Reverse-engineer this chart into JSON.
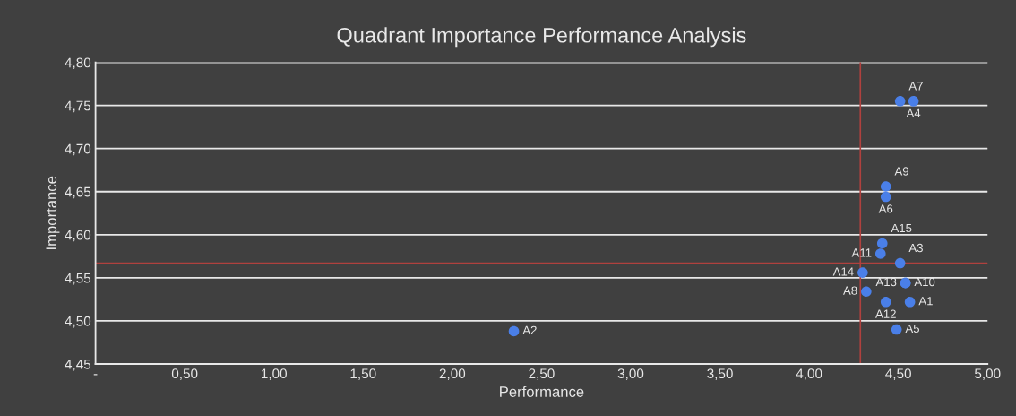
{
  "chart_data": {
    "type": "scatter",
    "title": "Quadrant Importance Performance Analysis",
    "xlabel": "Performance",
    "ylabel": "Importance",
    "x": [
      4.565,
      2.345,
      4.51,
      4.585,
      4.49,
      4.43,
      4.51,
      4.32,
      4.43,
      4.54,
      4.4,
      4.43,
      4.54,
      4.3,
      4.41
    ],
    "series": [
      {
        "color": "#4a7fe8",
        "values": [
          4.522,
          4.488,
          4.567,
          4.755,
          4.49,
          4.644,
          4.755,
          4.534,
          4.656,
          4.544,
          4.578,
          4.522,
          4.544,
          4.556,
          4.59
        ]
      }
    ],
    "annotations": [
      {
        "text": "A1",
        "x": 4.565,
        "y": 4.522
      },
      {
        "text": "A2",
        "x": 2.345,
        "y": 4.488
      },
      {
        "text": "A3",
        "x": 4.51,
        "y": 4.567
      },
      {
        "text": "A4",
        "x": 4.585,
        "y": 4.755
      },
      {
        "text": "A5",
        "x": 4.49,
        "y": 4.49
      },
      {
        "text": "A6",
        "x": 4.43,
        "y": 4.644
      },
      {
        "text": "A7",
        "x": 4.51,
        "y": 4.755
      },
      {
        "text": "A8",
        "x": 4.32,
        "y": 4.534
      },
      {
        "text": "A9",
        "x": 4.43,
        "y": 4.656
      },
      {
        "text": "A10",
        "x": 4.54,
        "y": 4.544
      },
      {
        "text": "A11",
        "x": 4.4,
        "y": 4.578
      },
      {
        "text": "A12",
        "x": 4.43,
        "y": 4.522
      },
      {
        "text": "A13",
        "x": 4.54,
        "y": 4.544
      },
      {
        "text": "A14",
        "x": 4.3,
        "y": 4.556
      },
      {
        "text": "A15",
        "x": 4.41,
        "y": 4.59
      }
    ],
    "ref_lines": [
      {
        "axis": "x",
        "value": 4.287,
        "color": "#b0413e"
      },
      {
        "axis": "y",
        "value": 4.567,
        "color": "#b0413e"
      }
    ],
    "xlim": [
      0,
      5
    ],
    "ylim": [
      4.45,
      4.8
    ],
    "xticks": [
      {
        "value": 0,
        "label": "-"
      },
      {
        "value": 0.5,
        "label": "0,50"
      },
      {
        "value": 1,
        "label": "1,00"
      },
      {
        "value": 1.5,
        "label": "1,50"
      },
      {
        "value": 2,
        "label": "2,00"
      },
      {
        "value": 2.5,
        "label": "2,50"
      },
      {
        "value": 3,
        "label": "3,00"
      },
      {
        "value": 3.5,
        "label": "3,50"
      },
      {
        "value": 4,
        "label": "4,00"
      },
      {
        "value": 4.5,
        "label": "4,50"
      },
      {
        "value": 5,
        "label": "5,00"
      }
    ],
    "yticks": [
      {
        "value": 4.45,
        "label": "4,45"
      },
      {
        "value": 4.5,
        "label": "4,50"
      },
      {
        "value": 4.55,
        "label": "4,55"
      },
      {
        "value": 4.6,
        "label": "4,60"
      },
      {
        "value": 4.65,
        "label": "4,65"
      },
      {
        "value": 4.7,
        "label": "4,70"
      },
      {
        "value": 4.75,
        "label": "4,75"
      },
      {
        "value": 4.8,
        "label": "4,80"
      }
    ],
    "grid": "y",
    "marker": "circle",
    "legend": false
  }
}
